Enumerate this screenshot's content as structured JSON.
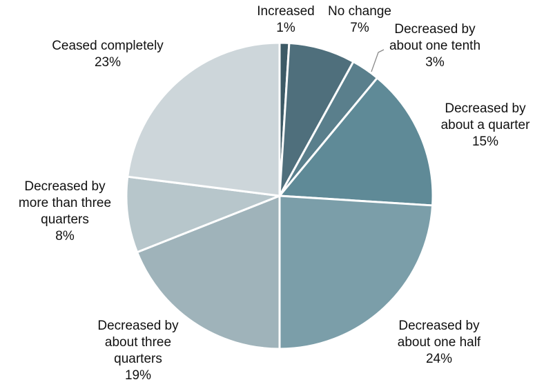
{
  "chart_data": {
    "type": "pie",
    "title": "",
    "slices": [
      {
        "label_lines": [
          "Increased",
          "1%"
        ],
        "value": 1,
        "color": "#3d5a66"
      },
      {
        "label_lines": [
          "No change",
          "7%"
        ],
        "value": 7,
        "color": "#4f6f7c"
      },
      {
        "label_lines": [
          "Decreased by",
          "about one tenth",
          "3%"
        ],
        "value": 3,
        "color": "#5a7f8c"
      },
      {
        "label_lines": [
          "Decreased by",
          "about a quarter",
          "15%"
        ],
        "value": 15,
        "color": "#5f8a97"
      },
      {
        "label_lines": [
          "Decreased by",
          "about one half",
          "24%"
        ],
        "value": 24,
        "color": "#7b9ea9"
      },
      {
        "label_lines": [
          "Decreased by",
          "about three",
          "quarters",
          "19%"
        ],
        "value": 19,
        "color": "#9fb3ba"
      },
      {
        "label_lines": [
          "Decreased by",
          "more than three",
          "quarters",
          "8%"
        ],
        "value": 8,
        "color": "#b7c6cb"
      },
      {
        "label_lines": [
          "Ceased completely",
          "23%"
        ],
        "value": 23,
        "color": "#cdd6da"
      }
    ],
    "legend": "none",
    "grid": false
  }
}
